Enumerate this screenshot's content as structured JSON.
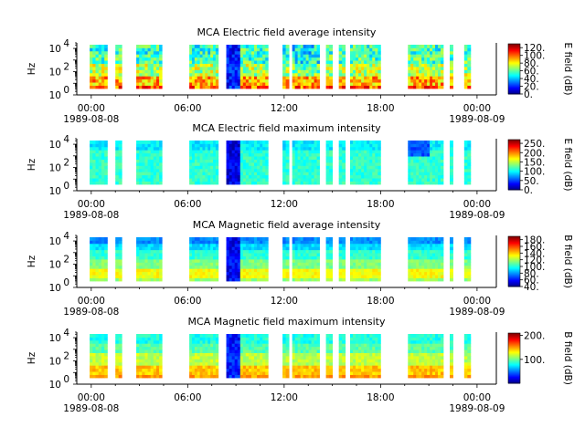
{
  "figure": {
    "background": "#ffffff"
  },
  "chart_data": [
    {
      "type": "heatmap",
      "title": "MCA  Electric field average intensity",
      "ylabel": "Hz",
      "ylabel_scale": "log",
      "ylim": [
        1,
        30000
      ],
      "yticks": [
        {
          "base": "10",
          "exp": "0"
        },
        {
          "base": "10",
          "exp": "2"
        },
        {
          "base": "10",
          "exp": "4"
        }
      ],
      "xlim_hours": [
        -0.9,
        25.2
      ],
      "xticks": [
        {
          "hour": 0,
          "label": "00:00",
          "date": "1989-08-08"
        },
        {
          "hour": 6,
          "label": "06:00",
          "date": ""
        },
        {
          "hour": 12,
          "label": "12:00",
          "date": ""
        },
        {
          "hour": 18,
          "label": "18:00",
          "date": ""
        },
        {
          "hour": 24,
          "label": "00:00",
          "date": "1989-08-09"
        }
      ],
      "colorbar": {
        "label": "E field (dB)",
        "range": [
          0,
          130
        ],
        "ticks": [
          "0.",
          "20.",
          "40.",
          "60.",
          "80.",
          "100.",
          "120."
        ],
        "tick_values": [
          0,
          20,
          40,
          60,
          80,
          100,
          120
        ]
      },
      "profile": "eavg",
      "data_segments_hours": [
        [
          -0.1,
          1.0
        ],
        [
          1.5,
          1.9
        ],
        [
          2.8,
          4.4
        ],
        [
          6.1,
          7.9
        ],
        [
          8.4,
          11.0
        ],
        [
          11.9,
          12.3
        ],
        [
          12.5,
          14.2
        ],
        [
          14.6,
          15.0
        ],
        [
          15.4,
          15.8
        ],
        [
          16.1,
          18.0
        ],
        [
          19.7,
          21.9
        ],
        [
          22.3,
          22.5
        ],
        [
          23.2,
          23.6
        ]
      ]
    },
    {
      "type": "heatmap",
      "title": "MCA  Electric field maximum intensity",
      "ylabel": "Hz",
      "ylabel_scale": "log",
      "ylim": [
        1,
        30000
      ],
      "yticks": [
        {
          "base": "10",
          "exp": "0"
        },
        {
          "base": "10",
          "exp": "2"
        },
        {
          "base": "10",
          "exp": "4"
        }
      ],
      "xlim_hours": [
        -0.9,
        25.2
      ],
      "xticks": [
        {
          "hour": 0,
          "label": "00:00",
          "date": "1989-08-08"
        },
        {
          "hour": 6,
          "label": "06:00",
          "date": ""
        },
        {
          "hour": 12,
          "label": "12:00",
          "date": ""
        },
        {
          "hour": 18,
          "label": "18:00",
          "date": ""
        },
        {
          "hour": 24,
          "label": "00:00",
          "date": "1989-08-09"
        }
      ],
      "colorbar": {
        "label": "E field (dB)",
        "range": [
          0,
          270
        ],
        "ticks": [
          "0.",
          "50.",
          "100.",
          "150.",
          "200.",
          "250."
        ],
        "tick_values": [
          0,
          50,
          100,
          150,
          200,
          250
        ]
      },
      "profile": "emax",
      "data_segments_hours": [
        [
          -0.1,
          1.0
        ],
        [
          1.5,
          1.9
        ],
        [
          2.8,
          4.4
        ],
        [
          6.1,
          7.9
        ],
        [
          8.4,
          11.0
        ],
        [
          11.9,
          12.3
        ],
        [
          12.5,
          14.2
        ],
        [
          14.6,
          15.0
        ],
        [
          15.4,
          15.8
        ],
        [
          16.1,
          18.0
        ],
        [
          19.7,
          21.9
        ],
        [
          22.3,
          22.5
        ],
        [
          23.2,
          23.6
        ]
      ]
    },
    {
      "type": "heatmap",
      "title": "MCA  Magnetic field average intensity",
      "ylabel": "Hz",
      "ylabel_scale": "log",
      "ylim": [
        1,
        30000
      ],
      "yticks": [
        {
          "base": "10",
          "exp": "0"
        },
        {
          "base": "10",
          "exp": "2"
        },
        {
          "base": "10",
          "exp": "4"
        }
      ],
      "xlim_hours": [
        -0.9,
        25.2
      ],
      "xticks": [
        {
          "hour": 0,
          "label": "00:00",
          "date": "1989-08-08"
        },
        {
          "hour": 6,
          "label": "06:00",
          "date": ""
        },
        {
          "hour": 12,
          "label": "12:00",
          "date": ""
        },
        {
          "hour": 18,
          "label": "18:00",
          "date": ""
        },
        {
          "hour": 24,
          "label": "00:00",
          "date": "1989-08-09"
        }
      ],
      "colorbar": {
        "label": "B field (dB)",
        "range": [
          40,
          190
        ],
        "ticks": [
          "40.",
          "60.",
          "80.",
          "100.",
          "120.",
          "140.",
          "160.",
          "180."
        ],
        "tick_values": [
          40,
          60,
          80,
          100,
          120,
          140,
          160,
          180
        ]
      },
      "profile": "bavg",
      "data_segments_hours": [
        [
          -0.1,
          1.0
        ],
        [
          1.5,
          1.9
        ],
        [
          2.8,
          4.4
        ],
        [
          6.1,
          7.9
        ],
        [
          8.4,
          11.0
        ],
        [
          11.9,
          12.3
        ],
        [
          12.5,
          14.2
        ],
        [
          14.6,
          15.0
        ],
        [
          15.4,
          15.8
        ],
        [
          16.1,
          18.0
        ],
        [
          19.7,
          21.9
        ],
        [
          22.3,
          22.5
        ],
        [
          23.2,
          23.6
        ]
      ]
    },
    {
      "type": "heatmap",
      "title": "MCA  Magnetic field maximum intensity",
      "ylabel": "Hz",
      "ylabel_scale": "log",
      "ylim": [
        1,
        30000
      ],
      "yticks": [
        {
          "base": "10",
          "exp": "0"
        },
        {
          "base": "10",
          "exp": "2"
        },
        {
          "base": "10",
          "exp": "4"
        }
      ],
      "xlim_hours": [
        -0.9,
        25.2
      ],
      "xticks": [
        {
          "hour": 0,
          "label": "00:00",
          "date": "1989-08-08"
        },
        {
          "hour": 6,
          "label": "06:00",
          "date": ""
        },
        {
          "hour": 12,
          "label": "12:00",
          "date": ""
        },
        {
          "hour": 18,
          "label": "18:00",
          "date": ""
        },
        {
          "hour": 24,
          "label": "00:00",
          "date": "1989-08-09"
        }
      ],
      "colorbar": {
        "label": "B field (dB)",
        "range": [
          0,
          210
        ],
        "ticks": [
          "100.",
          "200."
        ],
        "tick_values": [
          100,
          200
        ]
      },
      "profile": "bmax",
      "data_segments_hours": [
        [
          -0.1,
          1.0
        ],
        [
          1.5,
          1.9
        ],
        [
          2.8,
          4.4
        ],
        [
          6.1,
          7.9
        ],
        [
          8.4,
          11.0
        ],
        [
          11.9,
          12.3
        ],
        [
          12.5,
          14.2
        ],
        [
          14.6,
          15.0
        ],
        [
          15.4,
          15.8
        ],
        [
          16.1,
          18.0
        ],
        [
          19.7,
          21.9
        ],
        [
          22.3,
          22.5
        ],
        [
          23.2,
          23.6
        ]
      ]
    }
  ]
}
